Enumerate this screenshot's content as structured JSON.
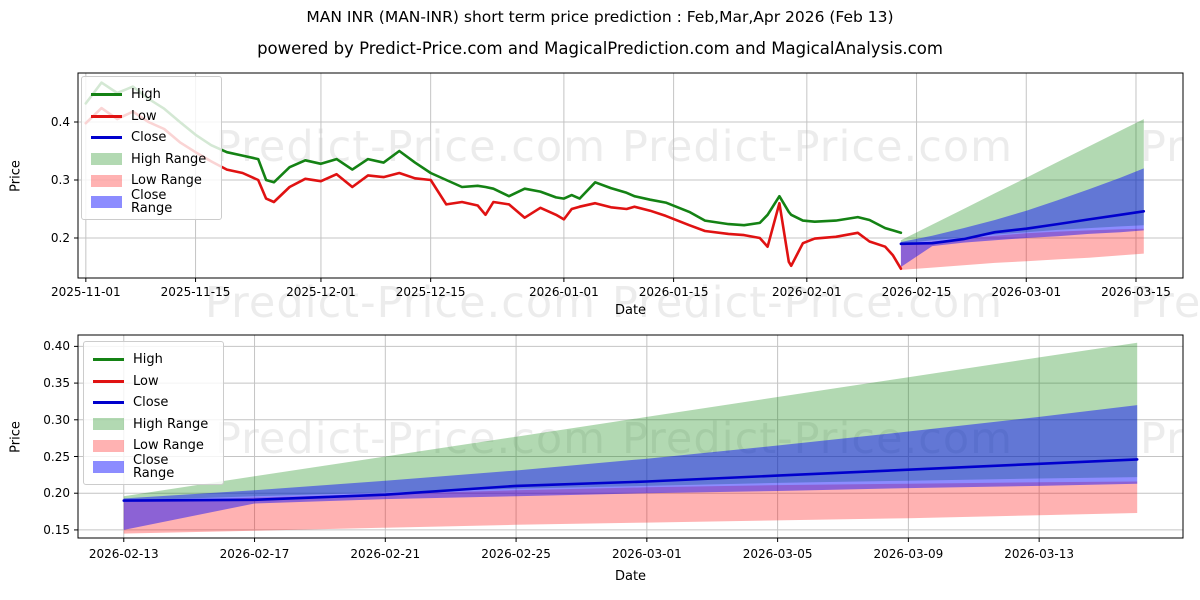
{
  "header": {
    "title": "MAN INR (MAN-INR) short term price prediction : Feb,Mar,Apr 2026 (Feb 13)",
    "subtitle": "powered by Predict-Price.com and MagicalPrediction.com and MagicalAnalysis.com"
  },
  "watermark": {
    "text": "Predict-Price.com"
  },
  "colors": {
    "high_line": "#148214",
    "low_line": "#e01212",
    "close_line": "#0000cd",
    "high_band": "rgba(0,128,0,0.30)",
    "low_band": "rgba(255,0,0,0.30)",
    "close_band": "rgba(0,0,255,0.45)",
    "grid": "#c4c4c4",
    "spine": "#000000"
  },
  "legend": {
    "position": "upper left",
    "items": [
      {
        "label": "High",
        "type": "line",
        "color": "#148214"
      },
      {
        "label": "Low",
        "type": "line",
        "color": "#e01212"
      },
      {
        "label": "Close",
        "type": "line",
        "color": "#0000cd"
      },
      {
        "label": "High Range",
        "type": "patch",
        "color": "rgba(0,128,0,0.30)"
      },
      {
        "label": "Low Range",
        "type": "patch",
        "color": "rgba(255,0,0,0.30)"
      },
      {
        "label": "Close Range",
        "type": "patch",
        "color": "rgba(0,0,255,0.45)"
      }
    ]
  },
  "chart_data": [
    {
      "type": "line",
      "name": "history_and_prediction",
      "xlabel": "Date",
      "ylabel": "Price",
      "grid": true,
      "epoch": "2025-11-01",
      "xlim_days": [
        -1,
        140
      ],
      "ylim": [
        0.131,
        0.4845
      ],
      "x_ticks": [
        {
          "day": 0,
          "label": "2025-11-01"
        },
        {
          "day": 14,
          "label": "2025-11-15"
        },
        {
          "day": 30,
          "label": "2025-12-01"
        },
        {
          "day": 44,
          "label": "2025-12-15"
        },
        {
          "day": 61,
          "label": "2026-01-01"
        },
        {
          "day": 75,
          "label": "2026-01-15"
        },
        {
          "day": 92,
          "label": "2026-02-01"
        },
        {
          "day": 106,
          "label": "2026-02-15"
        },
        {
          "day": 120,
          "label": "2026-03-01"
        },
        {
          "day": 134,
          "label": "2026-03-15"
        }
      ],
      "y_ticks": [
        {
          "v": 0.2,
          "label": "0.2"
        },
        {
          "v": 0.3,
          "label": "0.3"
        },
        {
          "v": 0.4,
          "label": "0.4"
        }
      ],
      "series": [
        {
          "name": "High",
          "color": "#148214",
          "days": [
            0,
            2,
            4,
            6,
            8,
            10,
            12,
            14,
            16,
            18,
            20,
            22,
            23,
            24,
            26,
            28,
            30,
            32,
            34,
            36,
            38,
            40,
            42,
            44,
            46,
            48,
            50,
            51,
            52,
            54,
            56,
            58,
            60,
            61,
            62,
            63,
            65,
            67,
            69,
            70,
            72,
            74,
            77,
            79,
            82,
            84,
            86,
            87,
            88.5,
            89.7,
            90,
            91.5,
            93,
            95.7,
            98.5,
            100,
            102,
            103,
            104
          ],
          "values": [
            0.432,
            0.468,
            0.45,
            0.461,
            0.44,
            0.423,
            0.4,
            0.378,
            0.36,
            0.348,
            0.342,
            0.336,
            0.3,
            0.296,
            0.322,
            0.334,
            0.328,
            0.336,
            0.318,
            0.336,
            0.33,
            0.35,
            0.33,
            0.312,
            0.3,
            0.288,
            0.29,
            0.288,
            0.285,
            0.272,
            0.285,
            0.28,
            0.27,
            0.268,
            0.274,
            0.268,
            0.296,
            0.286,
            0.278,
            0.272,
            0.266,
            0.261,
            0.245,
            0.23,
            0.224,
            0.222,
            0.226,
            0.24,
            0.272,
            0.245,
            0.24,
            0.23,
            0.228,
            0.23,
            0.236,
            0.231,
            0.217,
            0.213,
            0.209
          ]
        },
        {
          "name": "Low",
          "color": "#e01212",
          "days": [
            0,
            2,
            4,
            6,
            8,
            10,
            12,
            14,
            16,
            18,
            20,
            22,
            23,
            24,
            26,
            28,
            30,
            32,
            34,
            36,
            38,
            40,
            42,
            44,
            46,
            48,
            50,
            51,
            52,
            54,
            56,
            58,
            60,
            61,
            62,
            63,
            65,
            67,
            69,
            70,
            72,
            74,
            77,
            79,
            82,
            84,
            86,
            87,
            88.5,
            89.7,
            90,
            91.5,
            93,
            95.7,
            98.5,
            100,
            102,
            103,
            104
          ],
          "values": [
            0.398,
            0.424,
            0.405,
            0.418,
            0.4,
            0.388,
            0.365,
            0.348,
            0.332,
            0.318,
            0.312,
            0.3,
            0.268,
            0.262,
            0.288,
            0.302,
            0.298,
            0.31,
            0.288,
            0.308,
            0.305,
            0.312,
            0.303,
            0.3,
            0.258,
            0.262,
            0.256,
            0.24,
            0.262,
            0.258,
            0.235,
            0.252,
            0.24,
            0.232,
            0.25,
            0.254,
            0.26,
            0.253,
            0.25,
            0.254,
            0.247,
            0.238,
            0.222,
            0.212,
            0.207,
            0.205,
            0.2,
            0.185,
            0.26,
            0.159,
            0.152,
            0.191,
            0.199,
            0.202,
            0.209,
            0.194,
            0.185,
            0.17,
            0.147
          ]
        },
        {
          "name": "Close",
          "color": "#0000cd",
          "days": [
            104,
            108,
            112,
            116,
            120,
            124,
            128,
            132,
            135
          ],
          "values": [
            0.19,
            0.191,
            0.198,
            0.21,
            0.216,
            0.224,
            0.232,
            0.24,
            0.246
          ]
        }
      ],
      "bands": [
        {
          "name": "High Range",
          "fill": "rgba(0,128,0,0.30)",
          "days": [
            104,
            108,
            112,
            116,
            120,
            124,
            128,
            132,
            135
          ],
          "upper": [
            0.196,
            0.223,
            0.25,
            0.277,
            0.304,
            0.331,
            0.358,
            0.385,
            0.405
          ],
          "lower": [
            0.19,
            0.196,
            0.201,
            0.206,
            0.21,
            0.214,
            0.217,
            0.22,
            0.222
          ]
        },
        {
          "name": "Low Range",
          "fill": "rgba(255,0,0,0.30)",
          "days": [
            104,
            108,
            112,
            116,
            120,
            124,
            128,
            132,
            135
          ],
          "upper": [
            0.188,
            0.194,
            0.199,
            0.204,
            0.208,
            0.211,
            0.213,
            0.215,
            0.216
          ],
          "lower": [
            0.145,
            0.149,
            0.153,
            0.157,
            0.16,
            0.163,
            0.166,
            0.17,
            0.173
          ]
        },
        {
          "name": "Close Range",
          "fill": "rgba(0,0,255,0.45)",
          "days": [
            104,
            108,
            112,
            116,
            120,
            124,
            128,
            132,
            135
          ],
          "upper": [
            0.193,
            0.204,
            0.217,
            0.231,
            0.247,
            0.265,
            0.284,
            0.304,
            0.32
          ],
          "lower": [
            0.15,
            0.186,
            0.192,
            0.196,
            0.2,
            0.203,
            0.207,
            0.21,
            0.213
          ]
        }
      ]
    },
    {
      "type": "line",
      "name": "prediction_zoom",
      "xlabel": "Date",
      "ylabel": "Price",
      "grid": true,
      "epoch": "2026-02-13",
      "xlim_days": [
        -1.4,
        32.4
      ],
      "ylim": [
        0.139,
        0.4155
      ],
      "x_ticks": [
        {
          "day": 0,
          "label": "2026-02-13"
        },
        {
          "day": 4,
          "label": "2026-02-17"
        },
        {
          "day": 8,
          "label": "2026-02-21"
        },
        {
          "day": 12,
          "label": "2026-02-25"
        },
        {
          "day": 16,
          "label": "2026-03-01"
        },
        {
          "day": 20,
          "label": "2026-03-05"
        },
        {
          "day": 24,
          "label": "2026-03-09"
        },
        {
          "day": 28,
          "label": "2026-03-13"
        }
      ],
      "y_ticks": [
        {
          "v": 0.15,
          "label": "0.15"
        },
        {
          "v": 0.2,
          "label": "0.20"
        },
        {
          "v": 0.25,
          "label": "0.25"
        },
        {
          "v": 0.3,
          "label": "0.30"
        },
        {
          "v": 0.35,
          "label": "0.35"
        },
        {
          "v": 0.4,
          "label": "0.40"
        }
      ],
      "series": [
        {
          "name": "Close",
          "color": "#0000cd",
          "days": [
            0,
            4,
            8,
            12,
            16,
            20,
            24,
            28,
            31
          ],
          "values": [
            0.19,
            0.191,
            0.198,
            0.21,
            0.216,
            0.224,
            0.232,
            0.24,
            0.246
          ]
        }
      ],
      "bands": [
        {
          "name": "High Range",
          "fill": "rgba(0,128,0,0.30)",
          "days": [
            0,
            4,
            8,
            12,
            16,
            20,
            24,
            28,
            31
          ],
          "upper": [
            0.196,
            0.223,
            0.25,
            0.277,
            0.304,
            0.331,
            0.358,
            0.385,
            0.405
          ],
          "lower": [
            0.19,
            0.196,
            0.201,
            0.206,
            0.21,
            0.214,
            0.217,
            0.22,
            0.222
          ]
        },
        {
          "name": "Low Range",
          "fill": "rgba(255,0,0,0.30)",
          "days": [
            0,
            4,
            8,
            12,
            16,
            20,
            24,
            28,
            31
          ],
          "upper": [
            0.188,
            0.194,
            0.199,
            0.204,
            0.208,
            0.211,
            0.213,
            0.215,
            0.216
          ],
          "lower": [
            0.145,
            0.149,
            0.153,
            0.157,
            0.16,
            0.163,
            0.166,
            0.17,
            0.173
          ]
        },
        {
          "name": "Close Range",
          "fill": "rgba(0,0,255,0.45)",
          "days": [
            0,
            4,
            8,
            12,
            16,
            20,
            24,
            28,
            31
          ],
          "upper": [
            0.193,
            0.204,
            0.217,
            0.231,
            0.247,
            0.265,
            0.284,
            0.304,
            0.32
          ],
          "lower": [
            0.15,
            0.186,
            0.192,
            0.196,
            0.2,
            0.203,
            0.207,
            0.21,
            0.213
          ]
        }
      ]
    }
  ]
}
